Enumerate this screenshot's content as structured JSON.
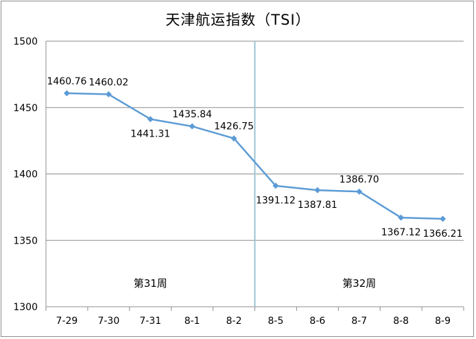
{
  "chart_data": {
    "type": "line",
    "title": "天津航运指数（TSI）",
    "categories": [
      "7-29",
      "7-30",
      "7-31",
      "8-1",
      "8-2",
      "8-5",
      "8-6",
      "8-7",
      "8-8",
      "8-9"
    ],
    "series": [
      {
        "values": [
          1460.76,
          1460.02,
          1441.31,
          1435.84,
          1426.75,
          1391.12,
          1387.81,
          1386.7,
          1367.12,
          1366.21
        ],
        "labels": [
          "1460.76",
          "1460.02",
          "1441.31",
          "1435.84",
          "1426.75",
          "1391.12",
          "1387.81",
          "1386.70",
          "1367.12",
          "1366.21"
        ],
        "color": "#5b9bd5"
      }
    ],
    "ylim": [
      1300,
      1500
    ],
    "yticks": [
      1300,
      1350,
      1400,
      1450,
      1500
    ],
    "grid": true,
    "divider_after_category": "8-2",
    "week_labels": [
      "第31周",
      "第32周"
    ],
    "xlabel": "",
    "ylabel": ""
  }
}
